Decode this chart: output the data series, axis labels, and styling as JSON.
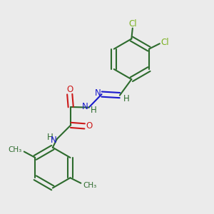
{
  "background_color": "#ebebeb",
  "bond_color": "#2d6b2d",
  "n_color": "#1a1acc",
  "o_color": "#cc1a1a",
  "cl_color": "#7ab020",
  "lw": 1.5,
  "figsize": [
    3.0,
    3.0
  ],
  "dpi": 100,
  "xlim": [
    0,
    1
  ],
  "ylim": [
    0,
    1
  ]
}
